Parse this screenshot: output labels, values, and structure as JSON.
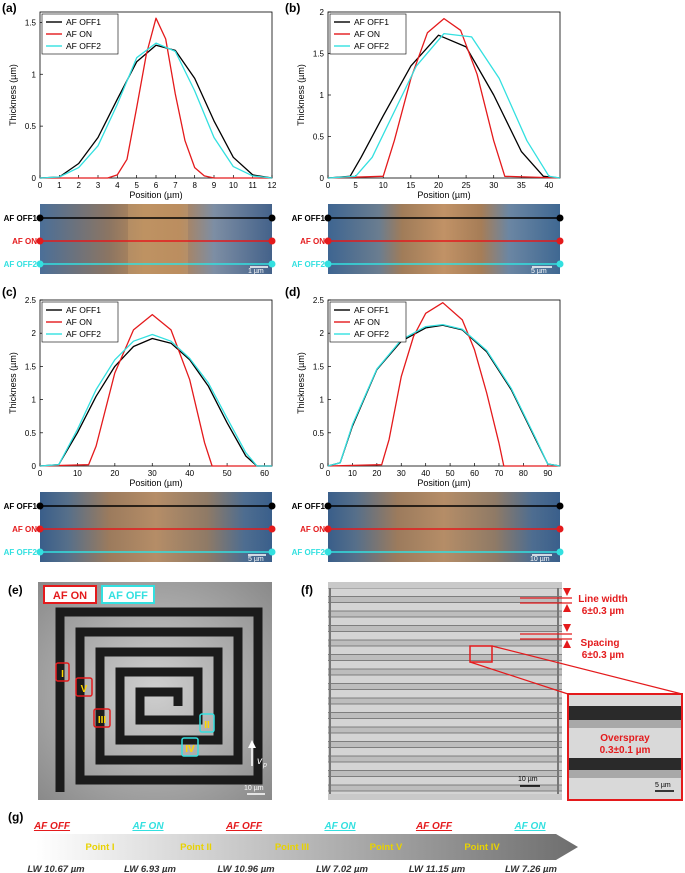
{
  "panels": [
    {
      "label": "(a)",
      "ylabel": "Thickness (µm)",
      "xlabel": "Position (µm)",
      "scale_bar": "1 µm"
    },
    {
      "label": "(b)",
      "ylabel": "Thickness (µm)",
      "xlabel": "Position (µm)",
      "scale_bar": "5 µm"
    },
    {
      "label": "(c)",
      "ylabel": "Thickness (µm)",
      "xlabel": "Position (µm)",
      "scale_bar": "5 µm"
    },
    {
      "label": "(d)",
      "ylabel": "Thickness (µm)",
      "xlabel": "Position (µm)",
      "scale_bar": "10 µm"
    }
  ],
  "legend": [
    "AF OFF1",
    "AF ON",
    "AF OFF2"
  ],
  "track_labels": [
    "AF OFF1",
    "AF ON",
    "AF OFF2"
  ],
  "colors": {
    "off1": "#000000",
    "on": "#e41a1c",
    "off2": "#33e0e0",
    "arrow": "#777777"
  },
  "panel_e": {
    "label": "(e)",
    "legend_on": "AF ON",
    "legend_off": "AF OFF",
    "points": [
      "I",
      "V",
      "III",
      "II",
      "IV"
    ],
    "vp": "v",
    "vp_sub": "p",
    "scale_bar": "10 µm"
  },
  "panel_f": {
    "label": "(f)",
    "line_width_title": "Line width",
    "line_width_value": "6±0.3 µm",
    "spacing_title": "Spacing",
    "spacing_value": "6±0.3 µm",
    "overspray_title": "Overspray",
    "overspray_value": "0.3±0.1 µm",
    "scale_bar": "10 µm",
    "inset_scale_bar": "5 µm"
  },
  "panel_g": {
    "label": "(g)",
    "modes": [
      "AF OFF",
      "AF ON",
      "AF OFF",
      "AF ON",
      "AF OFF",
      "AF ON"
    ],
    "points": [
      "Point I",
      "Point II",
      "Point III",
      "Point V",
      "Point IV"
    ],
    "widths": [
      "LW 10.67 µm",
      "LW 6.93 µm",
      "LW 10.96 µm",
      "LW 7.02 µm",
      "LW 11.15 µm",
      "LW 7.26 µm"
    ]
  },
  "chart_data": [
    {
      "type": "line",
      "xlim": [
        0,
        12
      ],
      "ylim": [
        0,
        1.6
      ],
      "xticks": [
        0,
        1,
        2,
        3,
        4,
        5,
        6,
        7,
        8,
        9,
        10,
        11,
        12
      ],
      "yticks": [
        0,
        0.5,
        1,
        1.5
      ],
      "series": [
        {
          "name": "AF OFF1",
          "x": [
            0,
            1,
            2,
            3,
            4,
            5,
            6,
            7,
            8,
            9,
            10,
            11,
            12
          ],
          "y": [
            0,
            0.01,
            0.14,
            0.39,
            0.76,
            1.12,
            1.28,
            1.23,
            0.96,
            0.55,
            0.2,
            0.03,
            0
          ]
        },
        {
          "name": "AF ON",
          "x": [
            0,
            3.5,
            4,
            4.5,
            5,
            5.5,
            6,
            6.5,
            7,
            7.5,
            8,
            8.5,
            9,
            12
          ],
          "y": [
            0,
            0,
            0.03,
            0.18,
            0.68,
            1.19,
            1.54,
            1.34,
            0.81,
            0.36,
            0.1,
            0.02,
            0,
            0
          ]
        },
        {
          "name": "AF OFF2",
          "x": [
            0,
            1,
            2,
            3,
            4,
            5,
            6,
            7,
            8,
            9,
            10,
            11,
            12
          ],
          "y": [
            0,
            0.01,
            0.1,
            0.31,
            0.71,
            1.16,
            1.3,
            1.22,
            0.84,
            0.39,
            0.11,
            0.02,
            0
          ]
        }
      ]
    },
    {
      "type": "line",
      "xlim": [
        0,
        42
      ],
      "ylim": [
        0,
        2
      ],
      "xticks": [
        0,
        5,
        10,
        15,
        20,
        25,
        30,
        35,
        40
      ],
      "yticks": [
        0,
        0.5,
        1,
        1.5,
        2
      ],
      "series": [
        {
          "name": "AF OFF1",
          "x": [
            0,
            4,
            6,
            10,
            15,
            20,
            25,
            30,
            35,
            39,
            42
          ],
          "y": [
            0,
            0.02,
            0.25,
            0.75,
            1.35,
            1.72,
            1.58,
            1.0,
            0.32,
            0.02,
            0
          ]
        },
        {
          "name": "AF ON",
          "x": [
            0,
            10,
            12,
            15,
            18,
            21,
            24,
            27,
            30,
            32,
            42
          ],
          "y": [
            0,
            0.02,
            0.45,
            1.2,
            1.75,
            1.92,
            1.78,
            1.25,
            0.45,
            0.02,
            0
          ]
        },
        {
          "name": "AF OFF2",
          "x": [
            0,
            5,
            8,
            12,
            16,
            21,
            26,
            31,
            36,
            40,
            42
          ],
          "y": [
            0,
            0.02,
            0.25,
            0.8,
            1.35,
            1.74,
            1.7,
            1.2,
            0.45,
            0.02,
            0
          ]
        }
      ]
    },
    {
      "type": "line",
      "xlim": [
        0,
        62
      ],
      "ylim": [
        0,
        2.5
      ],
      "xticks": [
        0,
        10,
        20,
        30,
        40,
        50,
        60
      ],
      "yticks": [
        0,
        0.5,
        1,
        1.5,
        2,
        2.5
      ],
      "series": [
        {
          "name": "AF OFF1",
          "x": [
            0,
            5,
            10,
            15,
            20,
            25,
            30,
            35,
            40,
            45,
            50,
            55,
            58,
            62
          ],
          "y": [
            0,
            0.02,
            0.5,
            1.05,
            1.5,
            1.8,
            1.92,
            1.85,
            1.6,
            1.2,
            0.65,
            0.15,
            0,
            0
          ]
        },
        {
          "name": "AF ON",
          "x": [
            0,
            13,
            15,
            20,
            25,
            30,
            35,
            40,
            44,
            46,
            62
          ],
          "y": [
            0,
            0.02,
            0.3,
            1.4,
            2.05,
            2.28,
            2.05,
            1.3,
            0.35,
            0,
            0
          ]
        },
        {
          "name": "AF OFF2",
          "x": [
            0,
            5,
            10,
            15,
            20,
            25,
            30,
            35,
            40,
            45,
            50,
            55,
            58,
            62
          ],
          "y": [
            0,
            0.02,
            0.55,
            1.15,
            1.6,
            1.88,
            1.98,
            1.88,
            1.62,
            1.25,
            0.72,
            0.2,
            0,
            0
          ]
        }
      ]
    },
    {
      "type": "line",
      "xlim": [
        0,
        95
      ],
      "ylim": [
        0,
        2.5
      ],
      "xticks": [
        0,
        10,
        20,
        30,
        40,
        50,
        60,
        70,
        80,
        90
      ],
      "yticks": [
        0,
        0.5,
        1,
        1.5,
        2,
        2.5
      ],
      "series": [
        {
          "name": "AF OFF1",
          "x": [
            0,
            5,
            10,
            20,
            30,
            40,
            47,
            55,
            65,
            75,
            85,
            90,
            95
          ],
          "y": [
            0,
            0.05,
            0.6,
            1.45,
            1.88,
            2.08,
            2.12,
            2.05,
            1.72,
            1.15,
            0.4,
            0.03,
            0
          ]
        },
        {
          "name": "AF ON",
          "x": [
            0,
            22,
            25,
            30,
            35,
            40,
            47,
            55,
            60,
            65,
            70,
            72,
            95
          ],
          "y": [
            0,
            0.02,
            0.4,
            1.35,
            1.95,
            2.3,
            2.46,
            2.2,
            1.75,
            1.1,
            0.35,
            0,
            0
          ]
        },
        {
          "name": "AF OFF2",
          "x": [
            0,
            5,
            10,
            20,
            30,
            40,
            47,
            55,
            65,
            75,
            85,
            90,
            95
          ],
          "y": [
            0,
            0.05,
            0.62,
            1.46,
            1.9,
            2.1,
            2.13,
            2.06,
            1.74,
            1.17,
            0.42,
            0.03,
            0
          ]
        }
      ]
    }
  ]
}
